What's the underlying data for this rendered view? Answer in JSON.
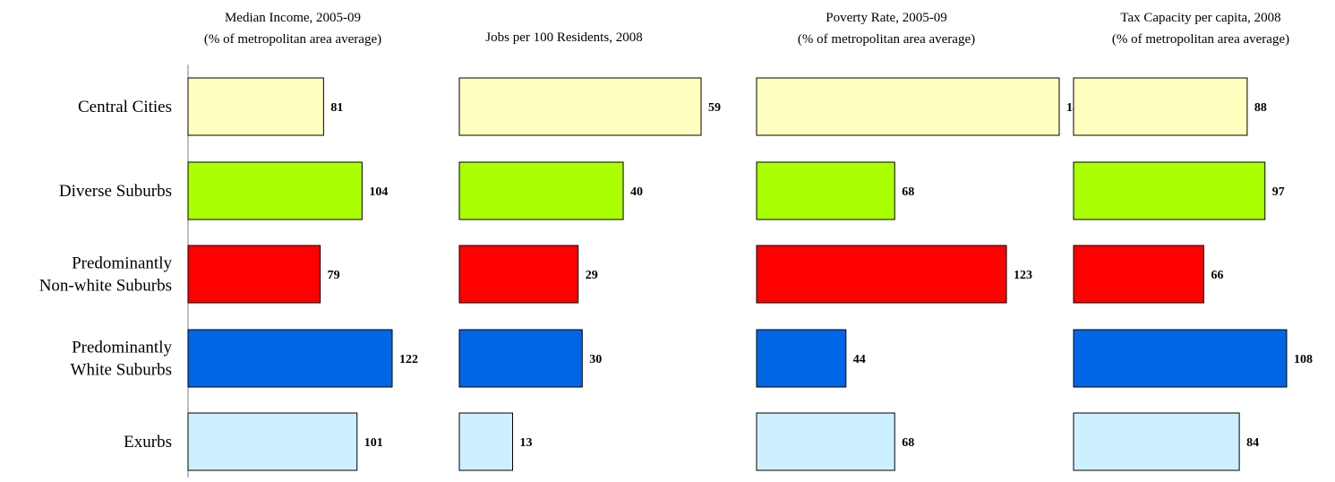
{
  "chart_data": {
    "type": "bar",
    "orientation": "horizontal",
    "categories": [
      [
        "Central Cities"
      ],
      [
        "Diverse Suburbs"
      ],
      [
        "Predominantly",
        "Non-white Suburbs"
      ],
      [
        "Predominantly",
        "White Suburbs"
      ],
      [
        "Exurbs"
      ]
    ],
    "colors": [
      "#FFFFC0",
      "#AAFF00",
      "#FF0000",
      "#0066E6",
      "#CCF0FF"
    ],
    "panels": [
      {
        "title": [
          "Median Income, 2005-09",
          "(% of metropolitan area average)"
        ],
        "values": [
          81,
          104,
          79,
          122,
          101
        ],
        "xlim": [
          0,
          122
        ]
      },
      {
        "title": [
          "Jobs per 100 Residents, 2008"
        ],
        "values": [
          59,
          40,
          29,
          30,
          13
        ],
        "xlim": [
          0,
          59
        ]
      },
      {
        "title": [
          "Poverty Rate, 2005-09",
          "(% of metropolitan area average)"
        ],
        "values": [
          149,
          68,
          123,
          44,
          68
        ],
        "xlim": [
          0,
          149
        ]
      },
      {
        "title": [
          "Tax Capacity per capita, 2008",
          "(% of metropolitan area average)"
        ],
        "values": [
          88,
          97,
          66,
          108,
          84
        ],
        "xlim": [
          0,
          108
        ]
      }
    ]
  }
}
